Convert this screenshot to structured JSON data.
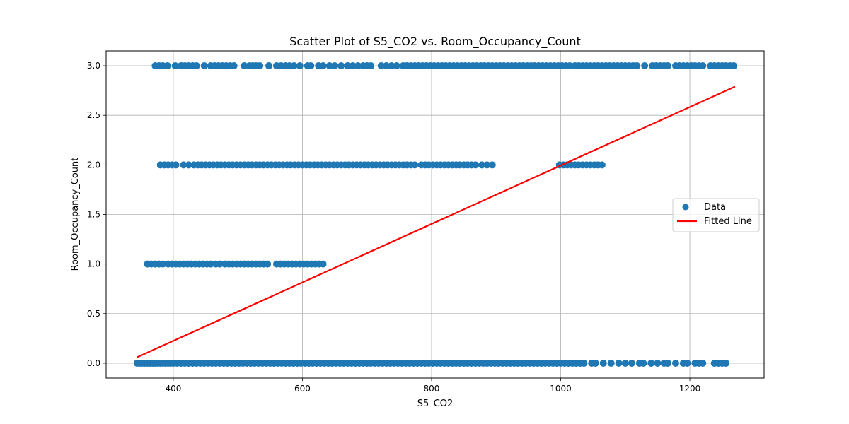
{
  "chart_data": {
    "type": "scatter",
    "title": "Scatter Plot of S5_CO2 vs. Room_Occupancy_Count",
    "xlabel": "S5_CO2",
    "ylabel": "Room_Occupancy_Count",
    "xlim": [
      296,
      1315
    ],
    "ylim": [
      -0.15,
      3.15
    ],
    "xticks": [
      400,
      600,
      800,
      1000,
      1200
    ],
    "yticks": [
      0.0,
      0.5,
      1.0,
      1.5,
      2.0,
      2.5,
      3.0
    ],
    "xtick_labels": [
      "400",
      "600",
      "800",
      "1000",
      "1200"
    ],
    "ytick_labels": [
      "0.0",
      "0.5",
      "1.0",
      "1.5",
      "2.0",
      "2.5",
      "3.0"
    ],
    "grid": true,
    "legend_position": "center-right",
    "colors": {
      "data": "#1f77b4",
      "fit": "#ff0000",
      "grid": "#b0b0b0"
    },
    "series": [
      {
        "name": "Data",
        "points": [
          {
            "y": 3,
            "x": [
              372,
              378,
              384,
              391,
              403,
              412,
              418,
              424,
              430,
              436,
              448,
              458,
              464,
              470,
              476,
              482,
              488,
              494,
              510,
              518,
              523,
              528,
              534,
              548,
              560,
              567,
              574,
              580,
              587,
              596,
              608,
              613,
              625,
              632,
              642,
              650,
              660,
              670,
              678,
              686,
              694,
              700,
              706,
              722,
              730,
              738,
              746,
              756,
              762,
              768,
              774,
              780,
              786,
              792,
              798,
              804,
              810,
              816,
              822,
              828,
              834,
              840,
              846,
              852,
              858,
              864,
              870,
              876,
              882,
              888,
              894,
              900,
              906,
              912,
              918,
              924,
              930,
              936,
              942,
              948,
              954,
              960,
              966,
              972,
              978,
              984,
              990,
              996,
              1002,
              1008,
              1014,
              1022,
              1028,
              1034,
              1040,
              1046,
              1052,
              1058,
              1064,
              1070,
              1076,
              1082,
              1088,
              1094,
              1100,
              1106,
              1112,
              1118,
              1130,
              1142,
              1148,
              1154,
              1160,
              1166,
              1178,
              1184,
              1190,
              1196,
              1202,
              1208,
              1214,
              1220,
              1232,
              1238,
              1244,
              1250,
              1256,
              1262,
              1268
            ]
          },
          {
            "y": 2,
            "x": [
              380,
              386,
              392,
              398,
              404,
              416,
              424,
              432,
              438,
              444,
              450,
              456,
              462,
              468,
              474,
              480,
              486,
              492,
              498,
              504,
              510,
              516,
              522,
              528,
              534,
              540,
              546,
              552,
              558,
              564,
              570,
              576,
              582,
              588,
              594,
              600,
              606,
              612,
              618,
              624,
              630,
              636,
              642,
              648,
              654,
              660,
              666,
              672,
              678,
              684,
              690,
              696,
              702,
              708,
              714,
              720,
              726,
              732,
              738,
              744,
              750,
              756,
              762,
              768,
              774,
              784,
              790,
              796,
              802,
              808,
              814,
              820,
              826,
              832,
              838,
              844,
              850,
              856,
              862,
              868,
              878,
              886,
              894,
              998,
              1004,
              1010,
              1016,
              1022,
              1028,
              1034,
              1040,
              1046,
              1052,
              1058,
              1064
            ]
          },
          {
            "y": 1,
            "x": [
              360,
              366,
              372,
              378,
              384,
              392,
              398,
              404,
              410,
              416,
              422,
              428,
              434,
              440,
              446,
              452,
              458,
              466,
              472,
              480,
              486,
              492,
              498,
              504,
              510,
              516,
              522,
              528,
              534,
              540,
              546,
              560,
              566,
              572,
              578,
              584,
              590,
              596,
              602,
              608,
              614,
              620,
              626,
              632
            ]
          },
          {
            "y": 0,
            "x": [
              344,
              348,
              352,
              356,
              360,
              364,
              368,
              372,
              376,
              380,
              384,
              388,
              392,
              396,
              400,
              406,
              412,
              418,
              424,
              430,
              436,
              442,
              448,
              454,
              460,
              466,
              472,
              478,
              484,
              490,
              496,
              502,
              508,
              514,
              520,
              526,
              532,
              538,
              544,
              550,
              556,
              562,
              568,
              574,
              580,
              586,
              592,
              598,
              604,
              610,
              616,
              622,
              628,
              634,
              640,
              646,
              652,
              658,
              664,
              670,
              676,
              682,
              688,
              694,
              700,
              706,
              712,
              718,
              724,
              730,
              736,
              742,
              748,
              754,
              760,
              766,
              772,
              778,
              784,
              790,
              796,
              802,
              808,
              814,
              820,
              826,
              832,
              838,
              844,
              850,
              856,
              862,
              868,
              874,
              880,
              886,
              892,
              898,
              904,
              910,
              916,
              922,
              928,
              934,
              940,
              946,
              952,
              958,
              964,
              970,
              976,
              982,
              988,
              994,
              1000,
              1006,
              1012,
              1018,
              1024,
              1030,
              1036,
              1048,
              1054,
              1066,
              1078,
              1090,
              1100,
              1110,
              1122,
              1128,
              1140,
              1150,
              1160,
              1166,
              1178,
              1190,
              1196,
              1208,
              1214,
              1220,
              1238,
              1244,
              1250,
              1256
            ]
          }
        ]
      },
      {
        "name": "Fitted Line",
        "type": "line",
        "x": [
          344,
          1270
        ],
        "y": [
          0.06,
          2.79
        ]
      }
    ]
  }
}
